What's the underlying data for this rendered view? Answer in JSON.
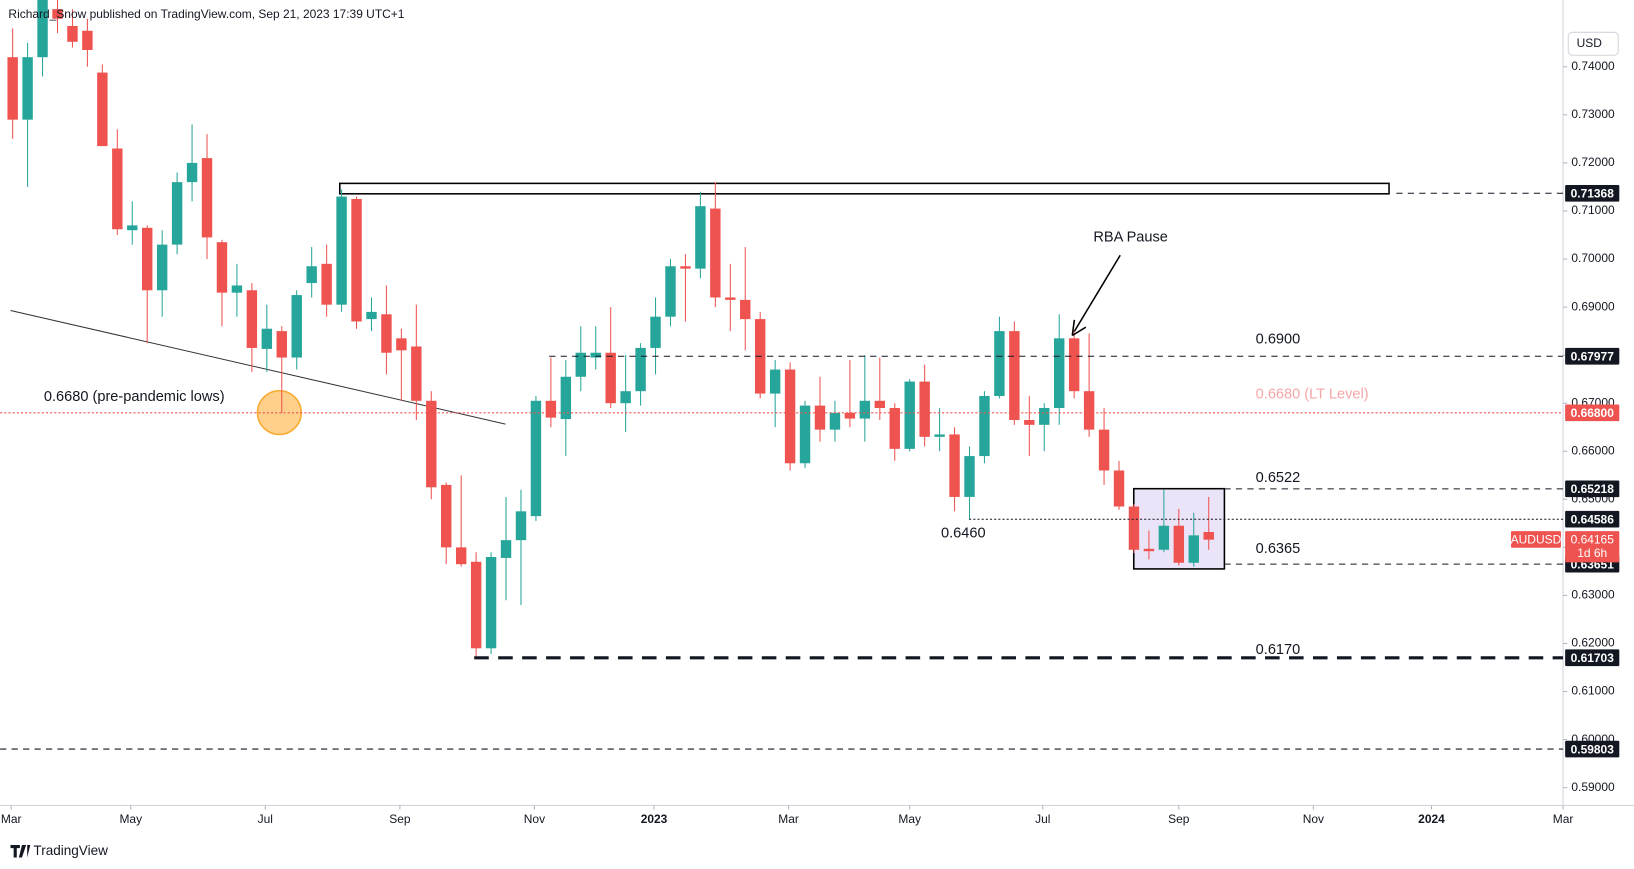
{
  "header": "Richard_Snow published on TradingView.com, Sep 21, 2023 17:39 UTC+1",
  "footer": "TradingView",
  "chart_data": {
    "type": "candlestick",
    "currency": "USD",
    "symbol": "AUDUSD",
    "countdown": "1d 6h",
    "up_color": "#26a69a",
    "down_color": "#ef5350",
    "grid": false,
    "candles": {
      "open": [
        0.742,
        0.729,
        0.742,
        0.752,
        0.7485,
        0.7475,
        0.7388,
        0.723,
        0.706,
        0.7065,
        0.6935,
        0.703,
        0.716,
        0.721,
        0.7035,
        0.693,
        0.6935,
        0.6813,
        0.685,
        0.6795,
        0.695,
        0.699,
        0.6905,
        0.7125,
        0.6875,
        0.6885,
        0.6835,
        0.6818,
        0.6705,
        0.653,
        0.64,
        0.637,
        0.619,
        0.6378,
        0.6415,
        0.6465,
        0.6705,
        0.6667,
        0.6755,
        0.6795,
        0.6805,
        0.67,
        0.6725,
        0.6815,
        0.688,
        0.6985,
        0.698,
        0.7105,
        0.692,
        0.6915,
        0.6875,
        0.672,
        0.677,
        0.6575,
        0.6695,
        0.6645,
        0.668,
        0.6668,
        0.6705,
        0.669,
        0.6605,
        0.6745,
        0.663,
        0.6635,
        0.6505,
        0.659,
        0.6715,
        0.685,
        0.6665,
        0.6655,
        0.669,
        0.6835,
        0.6725,
        0.6645,
        0.656,
        0.6485,
        0.6397,
        0.6395,
        0.6445,
        0.6368,
        0.6432
      ],
      "high": [
        0.748,
        0.745,
        0.76,
        0.756,
        0.752,
        0.75,
        0.7405,
        0.727,
        0.712,
        0.707,
        0.706,
        0.718,
        0.728,
        0.726,
        0.704,
        0.699,
        0.695,
        0.6905,
        0.686,
        0.6935,
        0.7025,
        0.703,
        0.7145,
        0.713,
        0.692,
        0.6945,
        0.6855,
        0.6905,
        0.6725,
        0.6535,
        0.655,
        0.639,
        0.639,
        0.6505,
        0.652,
        0.6715,
        0.6795,
        0.679,
        0.686,
        0.686,
        0.69,
        0.68,
        0.6825,
        0.692,
        0.7,
        0.701,
        0.714,
        0.716,
        0.699,
        0.7025,
        0.689,
        0.679,
        0.6785,
        0.6705,
        0.6755,
        0.6705,
        0.679,
        0.68,
        0.6795,
        0.67,
        0.675,
        0.678,
        0.669,
        0.665,
        0.661,
        0.6725,
        0.688,
        0.687,
        0.6715,
        0.67,
        0.6885,
        0.685,
        0.6845,
        0.669,
        0.658,
        0.649,
        0.6435,
        0.652,
        0.648,
        0.6472,
        0.6505
      ],
      "low": [
        0.725,
        0.715,
        0.738,
        0.747,
        0.744,
        0.74,
        0.7235,
        0.705,
        0.703,
        0.6825,
        0.688,
        0.701,
        0.712,
        0.7,
        0.686,
        0.688,
        0.6765,
        0.6765,
        0.668,
        0.677,
        0.692,
        0.688,
        0.689,
        0.6855,
        0.685,
        0.676,
        0.6705,
        0.6665,
        0.65,
        0.6365,
        0.636,
        0.617,
        0.6178,
        0.629,
        0.628,
        0.6455,
        0.665,
        0.659,
        0.6725,
        0.677,
        0.669,
        0.664,
        0.6695,
        0.676,
        0.686,
        0.687,
        0.696,
        0.69,
        0.685,
        0.681,
        0.671,
        0.665,
        0.656,
        0.6565,
        0.662,
        0.662,
        0.665,
        0.662,
        0.6665,
        0.658,
        0.66,
        0.661,
        0.66,
        0.6475,
        0.6458,
        0.6575,
        0.671,
        0.6655,
        0.659,
        0.66,
        0.6655,
        0.671,
        0.663,
        0.653,
        0.6478,
        0.6388,
        0.6375,
        0.639,
        0.6362,
        0.636,
        0.6395
      ],
      "close": [
        0.729,
        0.742,
        0.755,
        0.75,
        0.7452,
        0.7435,
        0.7235,
        0.7062,
        0.707,
        0.6935,
        0.703,
        0.716,
        0.72,
        0.7045,
        0.693,
        0.6945,
        0.6815,
        0.6855,
        0.6795,
        0.6925,
        0.6985,
        0.6905,
        0.713,
        0.687,
        0.689,
        0.6805,
        0.681,
        0.6705,
        0.6525,
        0.64,
        0.6365,
        0.619,
        0.638,
        0.6415,
        0.6475,
        0.6705,
        0.667,
        0.6755,
        0.6805,
        0.6805,
        0.67,
        0.6725,
        0.6815,
        0.688,
        0.6985,
        0.698,
        0.711,
        0.692,
        0.6915,
        0.6875,
        0.672,
        0.677,
        0.6575,
        0.6695,
        0.6645,
        0.668,
        0.6668,
        0.6705,
        0.669,
        0.6605,
        0.6745,
        0.663,
        0.6635,
        0.6505,
        0.659,
        0.6715,
        0.685,
        0.6665,
        0.6655,
        0.669,
        0.6835,
        0.6725,
        0.6645,
        0.656,
        0.6485,
        0.6395,
        0.6392,
        0.6445,
        0.6368,
        0.6425,
        0.6416
      ]
    },
    "xlim": [
      -0.84,
      103.7
    ],
    "xticks": [
      {
        "value": -0.1,
        "label": "Mar"
      },
      {
        "value": 7.9,
        "label": "May"
      },
      {
        "value": 16.9,
        "label": "Jul"
      },
      {
        "value": 25.9,
        "label": "Sep"
      },
      {
        "value": 34.9,
        "label": "Nov"
      },
      {
        "value": 42.9,
        "label": "2023"
      },
      {
        "value": 51.9,
        "label": "Mar"
      },
      {
        "value": 60,
        "label": "May"
      },
      {
        "value": 68.9,
        "label": "Jul"
      },
      {
        "value": 78,
        "label": "Sep"
      },
      {
        "value": 87,
        "label": "Nov"
      },
      {
        "value": 94.9,
        "label": "2024"
      },
      {
        "value": 103.7,
        "label": "Mar"
      }
    ],
    "ylim": [
      0.5863,
      0.7539
    ],
    "yticks": [
      {
        "value": 0.74,
        "label": "0.74000"
      },
      {
        "value": 0.73,
        "label": "0.73000"
      },
      {
        "value": 0.72,
        "label": "0.72000"
      },
      {
        "value": 0.71,
        "label": "0.71000"
      },
      {
        "value": 0.7,
        "label": "0.70000"
      },
      {
        "value": 0.69,
        "label": "0.69000"
      },
      {
        "value": 0.68,
        "label": "0.68000"
      },
      {
        "value": 0.67,
        "label": "0.67000"
      },
      {
        "value": 0.66,
        "label": "0.66000"
      },
      {
        "value": 0.65,
        "label": "0.65000"
      },
      {
        "value": 0.64,
        "label": "0.64000"
      },
      {
        "value": 0.63,
        "label": "0.63000"
      },
      {
        "value": 0.62,
        "label": "0.62000"
      },
      {
        "value": 0.61,
        "label": "0.61000"
      },
      {
        "value": 0.6,
        "label": "0.60000"
      },
      {
        "value": 0.59,
        "label": "0.59000"
      }
    ],
    "levels": [
      {
        "value": 0.71368,
        "style": "dashed"
      },
      {
        "value": 0.67977,
        "style": "dashed"
      },
      {
        "value": 0.668,
        "label": "0.66800",
        "style": "dotted",
        "color": "#ef5350"
      },
      {
        "value": 0.65218,
        "style": "dashed"
      },
      {
        "value": 0.64586,
        "style": "dotted"
      },
      {
        "value": 0.63651,
        "style": "dashed"
      },
      {
        "value": 0.61703,
        "style": "thick-dashed"
      },
      {
        "value": 0.59803,
        "style": "dashed"
      }
    ],
    "last_price": 0.64165,
    "annotations": [
      {
        "text": "0.6680 (pre-pandemic lows)"
      },
      {
        "text": "RBA Pause"
      },
      {
        "text": "0.6900"
      },
      {
        "text": "0.6680 (LT Level)",
        "color": "#f4a7a7"
      },
      {
        "text": "0.6522"
      },
      {
        "text": "0.6365"
      },
      {
        "text": "0.6170"
      },
      {
        "text": "0.6460"
      }
    ]
  }
}
